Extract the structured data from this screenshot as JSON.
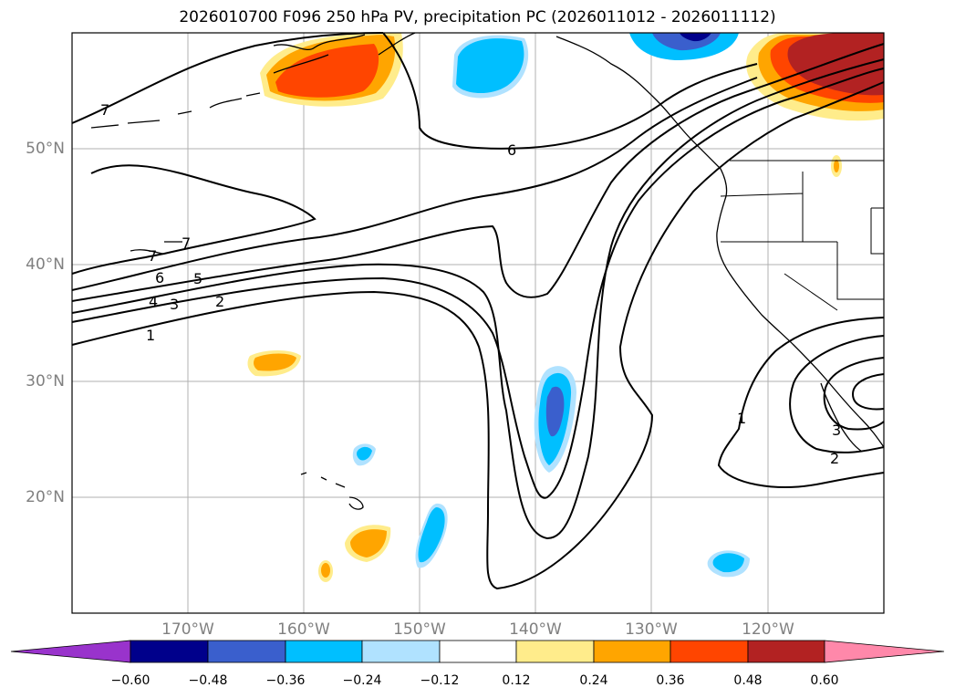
{
  "title": "2026010700 F096 250 hPa PV, precipitation PC (2026011012 - 2026011112)",
  "lat_labels": [
    "50°N",
    "40°N",
    "30°N",
    "20°N"
  ],
  "lon_labels": [
    "170°W",
    "160°W",
    "150°W",
    "140°W",
    "130°W",
    "120°W"
  ],
  "colorbar": {
    "ticks": [
      "−0.60",
      "−0.48",
      "−0.36",
      "−0.24",
      "−0.12",
      "0.12",
      "0.24",
      "0.36",
      "0.48",
      "0.60"
    ],
    "colors": [
      "#9933cc",
      "#00008b",
      "#3a5fcd",
      "#00bfff",
      "#b0e2ff",
      "#ffffff",
      "#ffec8b",
      "#ffa500",
      "#ff4500",
      "#b22222",
      "#ff88aa"
    ]
  },
  "contour_labels": [
    "7",
    "7",
    "7",
    "6",
    "5",
    "4",
    "3",
    "2",
    "1",
    "6",
    "1",
    "3",
    "2"
  ],
  "extent": {
    "lon_min": -180,
    "lon_max": -110,
    "lat_min": 10,
    "lat_max": 60
  }
}
